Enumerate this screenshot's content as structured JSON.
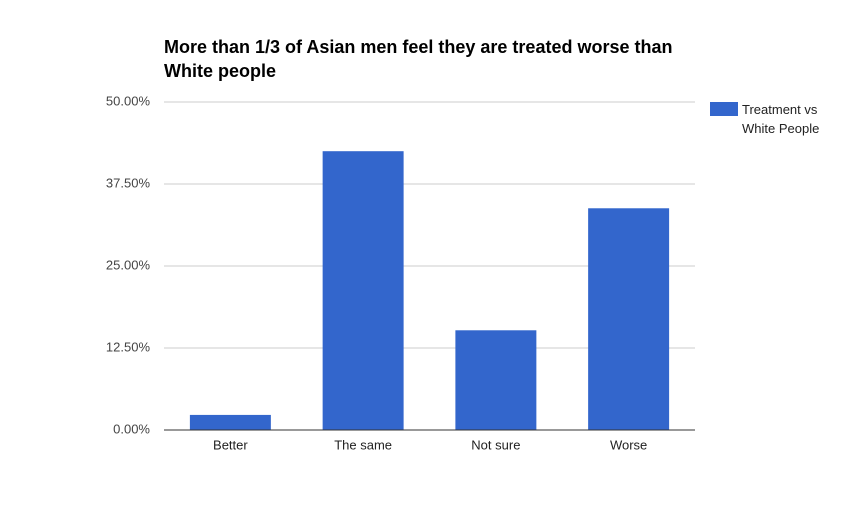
{
  "chart_data": {
    "type": "bar",
    "title": "More than 1/3 of Asian men feel they are treated worse than White people",
    "categories": [
      "Better",
      "The same",
      "Not sure",
      "Worse"
    ],
    "series": [
      {
        "name": "Treatment vs White People",
        "color": "#3366cc",
        "values": [
          2.3,
          42.5,
          15.2,
          33.8
        ]
      }
    ],
    "ylim": [
      0,
      50
    ],
    "yticks": [
      {
        "value": 0,
        "label": "0.00%"
      },
      {
        "value": 12.5,
        "label": "12.50%"
      },
      {
        "value": 25,
        "label": "25.00%"
      },
      {
        "value": 37.5,
        "label": "37.50%"
      },
      {
        "value": 50,
        "label": "50.00%"
      }
    ],
    "grid": true,
    "legend": "right"
  }
}
